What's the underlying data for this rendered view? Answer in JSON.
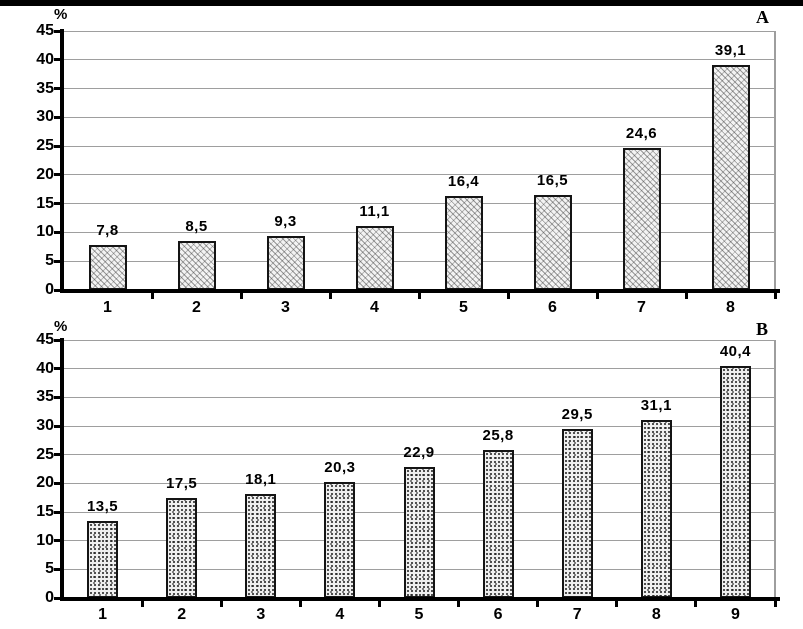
{
  "colors": {
    "axis": "#000000",
    "gridline": "#9e9e9e",
    "bar_fill_light": "#f3f3f3",
    "bar_border": "#141414",
    "top_border": "#000000",
    "text": "#000000"
  },
  "chart_data": [
    {
      "type": "bar",
      "panel_label": "A",
      "ylabel": "%",
      "xlabel": "",
      "title": "",
      "ylim": [
        0,
        45
      ],
      "ytick_step": 5,
      "grid": true,
      "legend": "none",
      "categories": [
        "1",
        "2",
        "3",
        "4",
        "5",
        "6",
        "7",
        "8"
      ],
      "values": [
        7.8,
        8.5,
        9.3,
        11.1,
        16.4,
        16.5,
        24.6,
        39.1
      ],
      "value_labels": [
        "7,8",
        "8,5",
        "9,3",
        "11,1",
        "16,4",
        "16,5",
        "24,6",
        "39,1"
      ]
    },
    {
      "type": "bar",
      "panel_label": "B",
      "ylabel": "%",
      "xlabel": "",
      "title": "",
      "ylim": [
        0,
        45
      ],
      "ytick_step": 5,
      "grid": true,
      "legend": "none",
      "categories": [
        "1",
        "2",
        "3",
        "4",
        "5",
        "6",
        "7",
        "8",
        "9"
      ],
      "values": [
        13.5,
        17.5,
        18.1,
        20.3,
        22.9,
        25.8,
        29.5,
        31.1,
        40.4
      ],
      "value_labels": [
        "13,5",
        "17,5",
        "18,1",
        "20,3",
        "22,9",
        "25,8",
        "29,5",
        "31,1",
        "40,4"
      ]
    }
  ]
}
